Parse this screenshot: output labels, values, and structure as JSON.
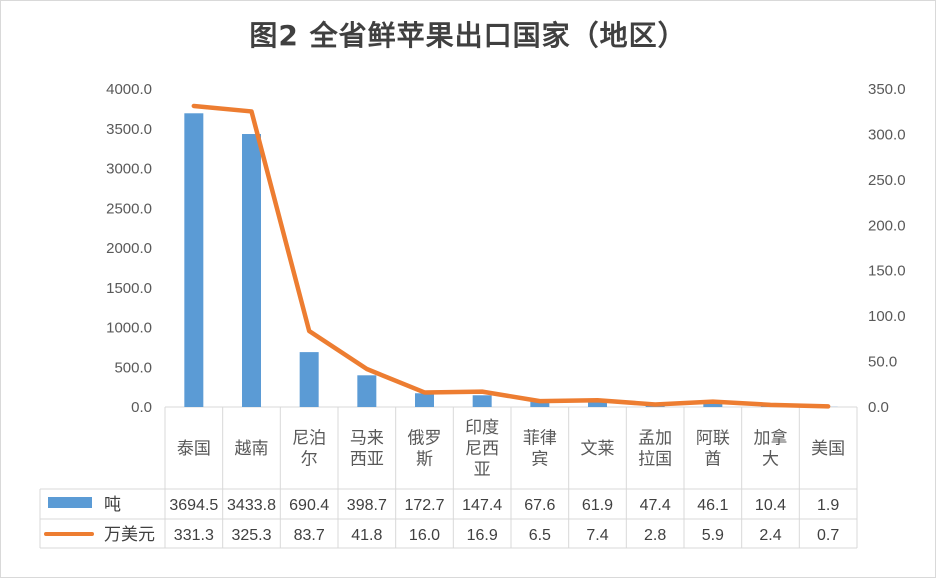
{
  "chart_data": {
    "type": "bar",
    "title": "图2 全省鲜苹果出口国家（地区）",
    "categories": [
      [
        "泰国"
      ],
      [
        "越南"
      ],
      [
        "尼泊",
        "尔"
      ],
      [
        "马来",
        "西亚"
      ],
      [
        "俄罗",
        "斯"
      ],
      [
        "印度",
        "尼西",
        "亚"
      ],
      [
        "菲律",
        "宾"
      ],
      [
        "文莱"
      ],
      [
        "孟加",
        "拉国"
      ],
      [
        "阿联",
        "酋"
      ],
      [
        "加拿",
        "大"
      ],
      [
        "美国"
      ]
    ],
    "series": [
      {
        "name": "吨",
        "type": "bar",
        "axis": "left",
        "color": "#5B9BD5",
        "values": [
          3694.5,
          3433.8,
          690.4,
          398.7,
          172.7,
          147.4,
          67.6,
          61.9,
          47.4,
          46.1,
          10.4,
          1.9
        ],
        "labels": [
          "3694.5",
          "3433.8",
          "690.4",
          "398.7",
          "172.7",
          "147.4",
          "67.6",
          "61.9",
          "47.4",
          "46.1",
          "10.4",
          "1.9"
        ]
      },
      {
        "name": "万美元",
        "type": "line",
        "axis": "right",
        "color": "#ED7D31",
        "values": [
          331.3,
          325.3,
          83.7,
          41.8,
          16.0,
          16.9,
          6.5,
          7.4,
          2.8,
          5.9,
          2.4,
          0.7
        ],
        "labels": [
          "331.3",
          "325.3",
          "83.7",
          "41.8",
          "16.0",
          "16.9",
          "6.5",
          "7.4",
          "2.8",
          "5.9",
          "2.4",
          "0.7"
        ]
      }
    ],
    "y_left": {
      "lim": [
        0,
        4000
      ],
      "ticks": [
        "0.0",
        "500.0",
        "1000.0",
        "1500.0",
        "2000.0",
        "2500.0",
        "3000.0",
        "3500.0",
        "4000.0"
      ]
    },
    "y_right": {
      "lim": [
        0,
        350
      ],
      "ticks": [
        "0.0",
        "50.0",
        "100.0",
        "150.0",
        "200.0",
        "250.0",
        "300.0",
        "350.0"
      ]
    },
    "grid": false,
    "legend": "data-table"
  }
}
